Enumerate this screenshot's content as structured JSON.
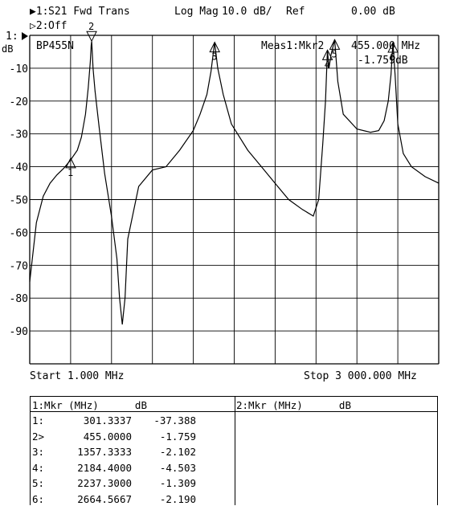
{
  "header": {
    "trace1_marker": "▶1:",
    "trace1_label": "S21 Fwd Trans",
    "format": "Log Mag",
    "scale": "10.0 dB/",
    "ref_label": "Ref",
    "ref_value": "0.00 dB",
    "trace2_marker": "▷2:",
    "trace2_label": "Off",
    "ref_level_label": "1:",
    "y_unit": "dB"
  },
  "plot": {
    "device_label": "BP455N",
    "meas_label": "Meas1:Mkr2",
    "meas_freq": "455.000 MHz",
    "meas_value": "-1.759dB",
    "start_label": "Start 1.000 MHz",
    "stop_label": "Stop 3 000.000 MHz"
  },
  "chart_data": {
    "type": "line",
    "title": "S21 Fwd Trans  Log Mag  10.0 dB/  Ref 0.00 dB",
    "xlabel": "",
    "ylabel": "dB",
    "xlim": [
      1,
      3000
    ],
    "ylim": [
      -100,
      0
    ],
    "yticks": [
      -10,
      -20,
      -30,
      -40,
      -50,
      -60,
      -70,
      -80,
      -90
    ],
    "grid": true,
    "series": [
      {
        "name": "S21 Fwd Trans",
        "x": [
          1,
          50,
          100,
          150,
          200,
          250,
          300,
          350,
          380,
          410,
          430,
          445,
          452,
          455,
          458,
          465,
          480,
          510,
          550,
          600,
          640,
          660,
          680,
          700,
          720,
          800,
          900,
          1000,
          1100,
          1200,
          1250,
          1300,
          1330,
          1357,
          1380,
          1420,
          1480,
          1600,
          1700,
          1800,
          1900,
          2000,
          2080,
          2120,
          2150,
          2170,
          2184,
          2195,
          2210,
          2237,
          2260,
          2300,
          2400,
          2500,
          2560,
          2600,
          2630,
          2650,
          2664,
          2680,
          2700,
          2740,
          2800,
          2900,
          3000
        ],
        "values": [
          -75,
          -57,
          -49,
          -45,
          -42.5,
          -40.5,
          -38,
          -35,
          -31,
          -24,
          -16,
          -8,
          -3,
          -1.8,
          -4,
          -10,
          -17,
          -28,
          -42,
          -55,
          -68,
          -80,
          -88,
          -80,
          -62,
          -46,
          -41,
          -40,
          -35,
          -29,
          -24,
          -18,
          -11,
          -2.1,
          -10,
          -18,
          -27,
          -35,
          -40,
          -45,
          -50,
          -53,
          -55,
          -50,
          -33,
          -20,
          -4.5,
          -10,
          -6,
          -1.3,
          -14,
          -24,
          -28.5,
          -29.5,
          -29,
          -26,
          -20,
          -12,
          -2.2,
          -12,
          -27,
          -36,
          -40,
          -43,
          -45
        ]
      }
    ],
    "markers": [
      {
        "id": "1",
        "freq_mhz": 301.3337,
        "db": -37.388
      },
      {
        "id": "2",
        "freq_mhz": 455.0,
        "db": -1.759,
        "active": true
      },
      {
        "id": "3",
        "freq_mhz": 1357.3333,
        "db": -2.102
      },
      {
        "id": "4",
        "freq_mhz": 2184.4,
        "db": -4.503
      },
      {
        "id": "5",
        "freq_mhz": 2237.3,
        "db": -1.309
      },
      {
        "id": "6",
        "freq_mhz": 2664.5667,
        "db": -2.19
      }
    ]
  },
  "marker_table": {
    "left_header": "1:Mkr (MHz)      dB",
    "right_header": "2:Mkr (MHz)      dB",
    "rows": [
      {
        "id": "1:",
        "freq": "301.3337",
        "db": "-37.388"
      },
      {
        "id": "2>",
        "freq": "455.0000",
        "db": "-1.759"
      },
      {
        "id": "3:",
        "freq": "1357.3333",
        "db": "-2.102"
      },
      {
        "id": "4:",
        "freq": "2184.4000",
        "db": "-4.503"
      },
      {
        "id": "5:",
        "freq": "2237.3000",
        "db": "-1.309"
      },
      {
        "id": "6:",
        "freq": "2664.5667",
        "db": "-2.190"
      }
    ]
  }
}
